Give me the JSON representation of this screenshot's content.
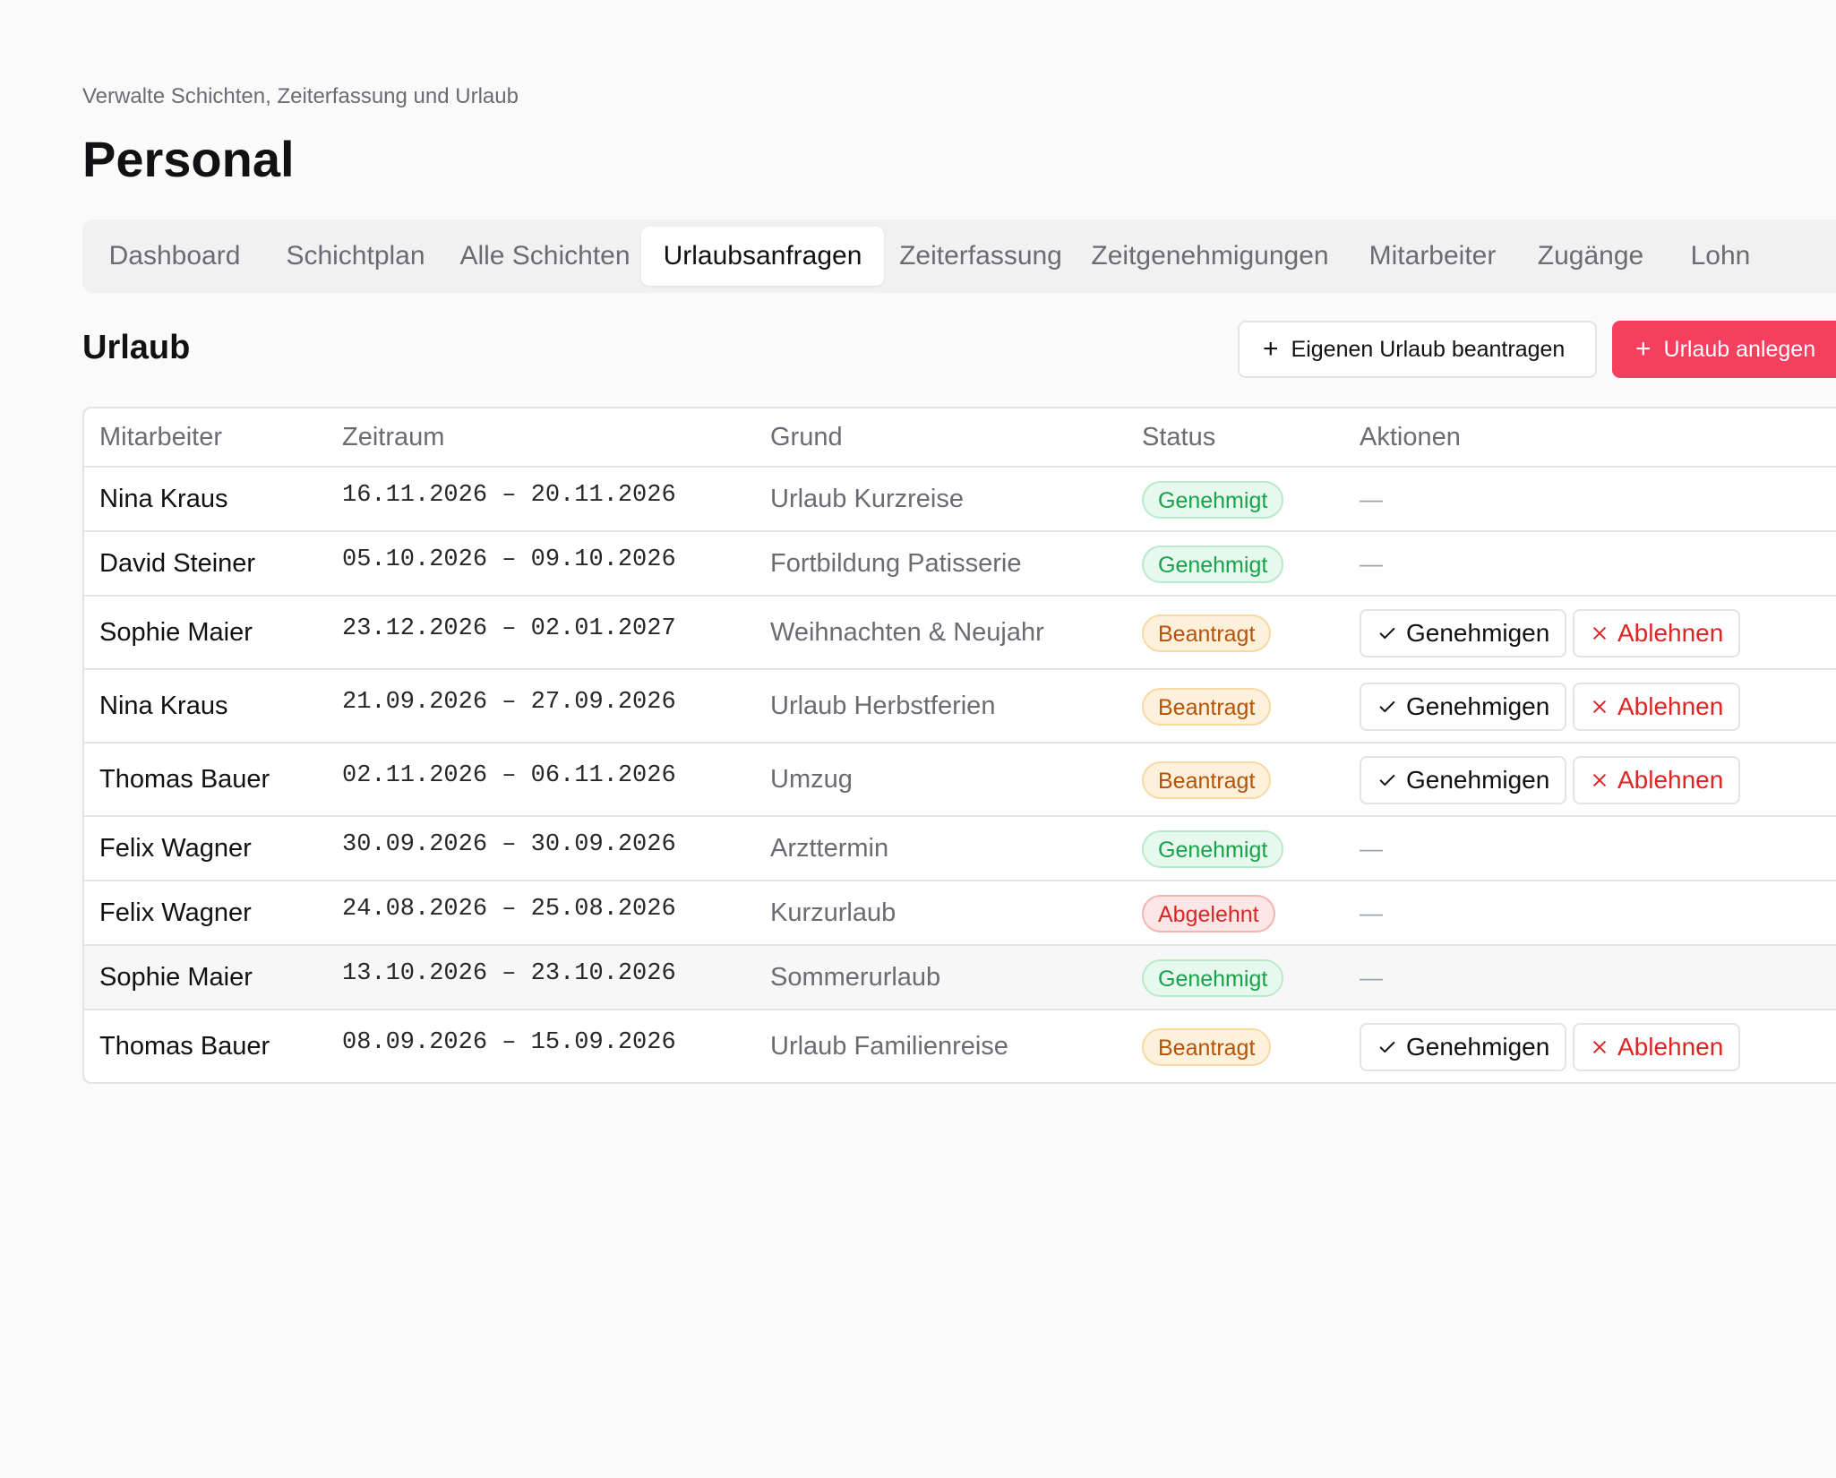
{
  "header": {
    "subtitle": "Verwalte Schichten, Zeiterfassung und Urlaub",
    "title": "Personal"
  },
  "tabs": [
    {
      "label": "Dashboard",
      "active": false
    },
    {
      "label": "Schichtplan",
      "active": false
    },
    {
      "label": "Alle Schichten",
      "active": false
    },
    {
      "label": "Urlaubsanfragen",
      "active": true
    },
    {
      "label": "Zeiterfassung",
      "active": false
    },
    {
      "label": "Zeitgenehmigungen",
      "active": false
    },
    {
      "label": "Mitarbeiter",
      "active": false
    },
    {
      "label": "Zugänge",
      "active": false
    },
    {
      "label": "Lohn",
      "active": false
    }
  ],
  "section": {
    "title": "Urlaub",
    "own_request_label": "Eigenen Urlaub beantragen",
    "create_label": "Urlaub anlegen"
  },
  "table": {
    "columns": [
      "Mitarbeiter",
      "Zeitraum",
      "Grund",
      "Status",
      "Aktionen"
    ],
    "approve_label": "Genehmigen",
    "reject_label": "Ablehnen",
    "empty_action": "—",
    "rows": [
      {
        "name": "Nina Kraus",
        "range": "16.11.2026 – 20.11.2026",
        "reason": "Urlaub Kurzreise",
        "status": "Genehmigt",
        "status_type": "approved",
        "actions": false
      },
      {
        "name": "David Steiner",
        "range": "05.10.2026 – 09.10.2026",
        "reason": "Fortbildung Patisserie",
        "status": "Genehmigt",
        "status_type": "approved",
        "actions": false
      },
      {
        "name": "Sophie Maier",
        "range": "23.12.2026 – 02.01.2027",
        "reason": "Weihnachten & Neujahr",
        "status": "Beantragt",
        "status_type": "requested",
        "actions": true
      },
      {
        "name": "Nina Kraus",
        "range": "21.09.2026 – 27.09.2026",
        "reason": "Urlaub Herbstferien",
        "status": "Beantragt",
        "status_type": "requested",
        "actions": true
      },
      {
        "name": "Thomas Bauer",
        "range": "02.11.2026 – 06.11.2026",
        "reason": "Umzug",
        "status": "Beantragt",
        "status_type": "requested",
        "actions": true
      },
      {
        "name": "Felix Wagner",
        "range": "30.09.2026 – 30.09.2026",
        "reason": "Arzttermin",
        "status": "Genehmigt",
        "status_type": "approved",
        "actions": false
      },
      {
        "name": "Felix Wagner",
        "range": "24.08.2026 – 25.08.2026",
        "reason": "Kurzurlaub",
        "status": "Abgelehnt",
        "status_type": "rejected",
        "actions": false
      },
      {
        "name": "Sophie Maier",
        "range": "13.10.2026 – 23.10.2026",
        "reason": "Sommerurlaub",
        "status": "Genehmigt",
        "status_type": "approved",
        "actions": false
      },
      {
        "name": "Thomas Bauer",
        "range": "08.09.2026 – 15.09.2026",
        "reason": "Urlaub Familienreise",
        "status": "Beantragt",
        "status_type": "requested",
        "actions": true
      }
    ]
  },
  "colors": {
    "accent": "#f43f5e",
    "approved": "#16a34a",
    "requested": "#b45309",
    "rejected": "#dc2626"
  },
  "icons": {
    "add": "plus-icon",
    "approve": "check-icon",
    "reject": "x-icon"
  }
}
